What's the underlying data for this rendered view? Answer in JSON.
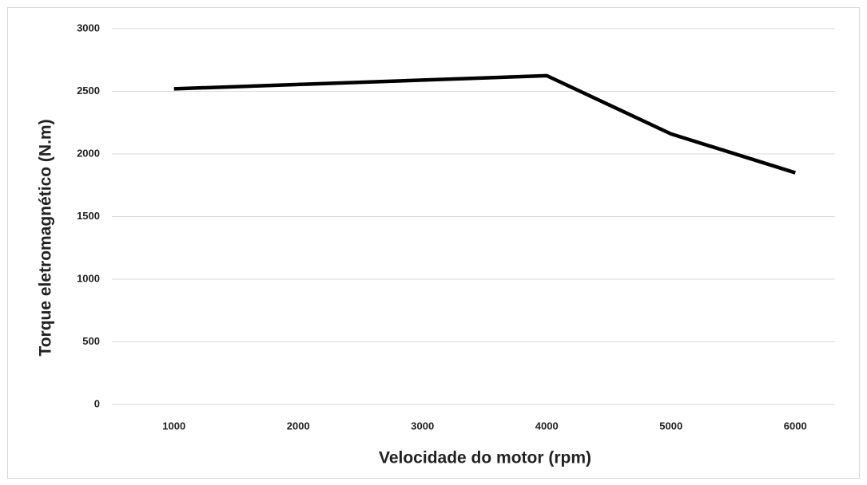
{
  "chart_data": {
    "type": "line",
    "x_label": "Velocidade do motor (rpm)",
    "y_label": "Torque eletromagnético (N.m)",
    "categories": [
      "1000",
      "2000",
      "3000",
      "4000",
      "5000",
      "6000"
    ],
    "series": [
      {
        "color": "#000000",
        "values": [
          2520,
          2555,
          2590,
          2625,
          2160,
          1850
        ]
      }
    ],
    "ylim": [
      0,
      3000
    ],
    "yticks": [
      0,
      500,
      1000,
      1500,
      2000,
      2500,
      3000
    ],
    "grid": true
  }
}
